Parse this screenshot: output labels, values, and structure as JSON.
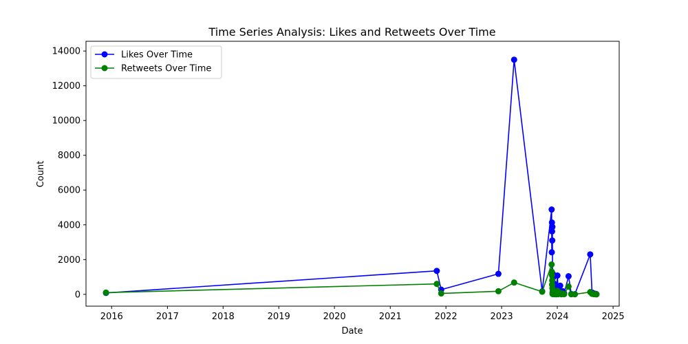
{
  "chart_data": {
    "type": "line",
    "title": "Time Series Analysis: Likes and Retweets Over Time",
    "xlabel": "Date",
    "ylabel": "Count",
    "x_ticks": [
      "2016",
      "2017",
      "2018",
      "2019",
      "2020",
      "2021",
      "2022",
      "2023",
      "2024",
      "2025"
    ],
    "y_ticks": [
      "0",
      "2000",
      "4000",
      "6000",
      "8000",
      "10000",
      "12000",
      "14000"
    ],
    "xlim": [
      "2015-07-17",
      "2025-02-10"
    ],
    "ylim": [
      -680,
      14560
    ],
    "grid": false,
    "legend_position": "upper left",
    "series": [
      {
        "name": "Likes Over Time",
        "color": "#0000ff",
        "points": [
          {
            "x": "2015-11-25",
            "y": 80
          },
          {
            "x": "2021-11-02",
            "y": 1350
          },
          {
            "x": "2021-12-01",
            "y": 270
          },
          {
            "x": "2022-12-11",
            "y": 1180
          },
          {
            "x": "2023-03-24",
            "y": 13500
          },
          {
            "x": "2023-09-24",
            "y": 170
          },
          {
            "x": "2023-11-25",
            "y": 4880
          },
          {
            "x": "2023-11-26",
            "y": 2420
          },
          {
            "x": "2023-11-27",
            "y": 4130
          },
          {
            "x": "2023-11-28",
            "y": 3620
          },
          {
            "x": "2023-11-29",
            "y": 3100
          },
          {
            "x": "2023-11-30",
            "y": 3880
          },
          {
            "x": "2023-12-01",
            "y": 80
          },
          {
            "x": "2023-12-02",
            "y": 1200
          },
          {
            "x": "2023-12-03",
            "y": 200
          },
          {
            "x": "2023-12-04",
            "y": 950
          },
          {
            "x": "2023-12-06",
            "y": 30
          },
          {
            "x": "2023-12-08",
            "y": 650
          },
          {
            "x": "2023-12-10",
            "y": 60
          },
          {
            "x": "2023-12-13",
            "y": 400
          },
          {
            "x": "2023-12-16",
            "y": 20
          },
          {
            "x": "2023-12-20",
            "y": 250
          },
          {
            "x": "2023-12-25",
            "y": 10
          },
          {
            "x": "2024-01-02",
            "y": 1080
          },
          {
            "x": "2024-01-07",
            "y": 50
          },
          {
            "x": "2024-01-12",
            "y": 160
          },
          {
            "x": "2024-01-20",
            "y": 500
          },
          {
            "x": "2024-01-28",
            "y": 30
          },
          {
            "x": "2024-02-06",
            "y": 180
          },
          {
            "x": "2024-02-15",
            "y": 60
          },
          {
            "x": "2024-03-15",
            "y": 1040
          },
          {
            "x": "2024-04-02",
            "y": 20
          },
          {
            "x": "2024-04-25",
            "y": 10
          },
          {
            "x": "2024-08-04",
            "y": 2300
          },
          {
            "x": "2024-08-16",
            "y": 100
          },
          {
            "x": "2024-08-28",
            "y": 50
          },
          {
            "x": "2024-09-06",
            "y": 10
          },
          {
            "x": "2024-09-11",
            "y": 30
          },
          {
            "x": "2024-09-14",
            "y": 5
          }
        ]
      },
      {
        "name": "Retweets Over Time",
        "color": "#008000",
        "points": [
          {
            "x": "2015-11-25",
            "y": 100
          },
          {
            "x": "2021-11-02",
            "y": 600
          },
          {
            "x": "2021-12-01",
            "y": 50
          },
          {
            "x": "2022-12-11",
            "y": 180
          },
          {
            "x": "2023-03-24",
            "y": 680
          },
          {
            "x": "2023-09-24",
            "y": 150
          },
          {
            "x": "2023-11-25",
            "y": 1720
          },
          {
            "x": "2023-11-26",
            "y": 1300
          },
          {
            "x": "2023-11-27",
            "y": 1100
          },
          {
            "x": "2023-11-28",
            "y": 560
          },
          {
            "x": "2023-11-29",
            "y": 800
          },
          {
            "x": "2023-11-30",
            "y": 350
          },
          {
            "x": "2023-12-01",
            "y": 20
          },
          {
            "x": "2023-12-02",
            "y": 120
          },
          {
            "x": "2023-12-03",
            "y": 60
          },
          {
            "x": "2023-12-04",
            "y": 150
          },
          {
            "x": "2023-12-06",
            "y": 10
          },
          {
            "x": "2023-12-08",
            "y": 90
          },
          {
            "x": "2023-12-10",
            "y": 20
          },
          {
            "x": "2023-12-13",
            "y": 60
          },
          {
            "x": "2023-12-16",
            "y": 5
          },
          {
            "x": "2023-12-20",
            "y": 40
          },
          {
            "x": "2023-12-25",
            "y": 5
          },
          {
            "x": "2024-01-02",
            "y": 200
          },
          {
            "x": "2024-01-07",
            "y": 10
          },
          {
            "x": "2024-01-12",
            "y": 30
          },
          {
            "x": "2024-01-20",
            "y": 80
          },
          {
            "x": "2024-01-28",
            "y": 5
          },
          {
            "x": "2024-02-06",
            "y": 40
          },
          {
            "x": "2024-02-15",
            "y": 10
          },
          {
            "x": "2024-03-15",
            "y": 450
          },
          {
            "x": "2024-04-02",
            "y": 5
          },
          {
            "x": "2024-04-25",
            "y": 5
          },
          {
            "x": "2024-08-04",
            "y": 130
          },
          {
            "x": "2024-08-16",
            "y": 30
          },
          {
            "x": "2024-08-28",
            "y": 10
          },
          {
            "x": "2024-09-06",
            "y": 5
          },
          {
            "x": "2024-09-11",
            "y": 10
          },
          {
            "x": "2024-09-14",
            "y": 2
          }
        ]
      }
    ]
  }
}
